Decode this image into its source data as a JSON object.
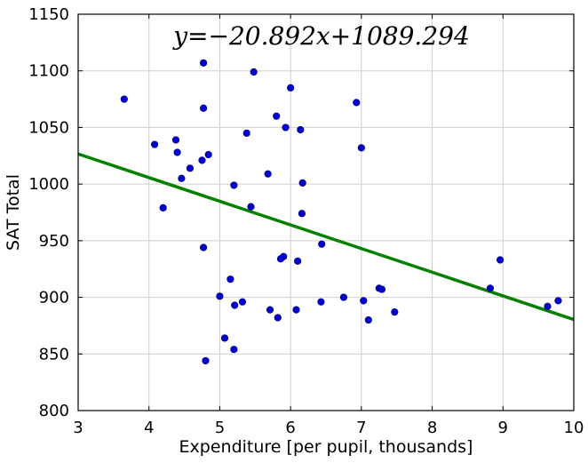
{
  "chart_data": {
    "type": "scatter",
    "title": "",
    "equation": "y=−20.892x+1089.294",
    "xlabel": "Expenditure [per pupil, thousands]",
    "ylabel": "SAT Total",
    "xlim": [
      3,
      10
    ],
    "ylim": [
      800,
      1150
    ],
    "xticks": [
      3,
      4,
      5,
      6,
      7,
      8,
      9,
      10
    ],
    "yticks": [
      800,
      850,
      900,
      950,
      1000,
      1050,
      1100,
      1150
    ],
    "grid": true,
    "fit_line": {
      "slope": -20.892,
      "intercept": 1089.294,
      "color": "#008000"
    },
    "point_color": "#0000cc",
    "points": [
      [
        3.65,
        1075
      ],
      [
        4.08,
        1035
      ],
      [
        4.2,
        979
      ],
      [
        4.38,
        1039
      ],
      [
        4.4,
        1028
      ],
      [
        4.46,
        1005
      ],
      [
        4.58,
        1014
      ],
      [
        4.75,
        1021
      ],
      [
        4.77,
        1107
      ],
      [
        4.77,
        1067
      ],
      [
        4.77,
        944
      ],
      [
        4.8,
        844
      ],
      [
        4.84,
        1026
      ],
      [
        5.0,
        901
      ],
      [
        5.07,
        864
      ],
      [
        5.15,
        916
      ],
      [
        5.2,
        854
      ],
      [
        5.2,
        999
      ],
      [
        5.21,
        893
      ],
      [
        5.32,
        896
      ],
      [
        5.38,
        1045
      ],
      [
        5.44,
        980
      ],
      [
        5.48,
        1099
      ],
      [
        5.68,
        1009
      ],
      [
        5.71,
        889
      ],
      [
        5.8,
        1060
      ],
      [
        5.82,
        882
      ],
      [
        5.86,
        934
      ],
      [
        5.9,
        936
      ],
      [
        5.93,
        1050
      ],
      [
        6.0,
        1085
      ],
      [
        6.08,
        889
      ],
      [
        6.1,
        932
      ],
      [
        6.14,
        1048
      ],
      [
        6.16,
        974
      ],
      [
        6.17,
        1001
      ],
      [
        6.43,
        896
      ],
      [
        6.44,
        947
      ],
      [
        6.75,
        900
      ],
      [
        6.93,
        1072
      ],
      [
        7.0,
        1032
      ],
      [
        7.03,
        897
      ],
      [
        7.1,
        880
      ],
      [
        7.25,
        908
      ],
      [
        7.29,
        907
      ],
      [
        7.47,
        887
      ],
      [
        8.82,
        908
      ],
      [
        8.96,
        933
      ],
      [
        9.63,
        892
      ],
      [
        9.78,
        897
      ]
    ]
  }
}
